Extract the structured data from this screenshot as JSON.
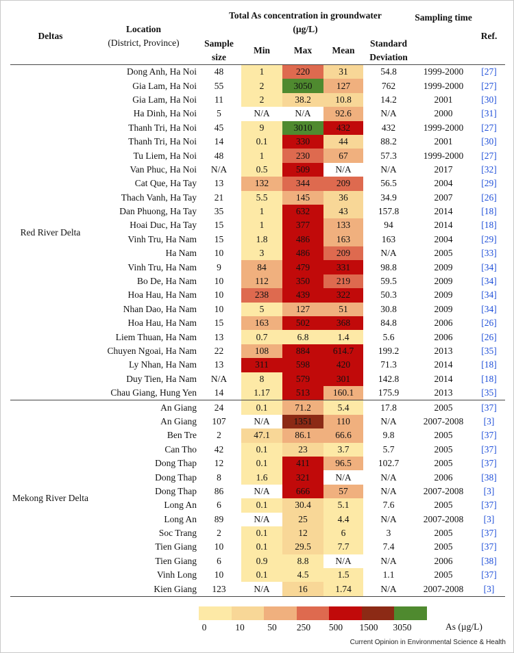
{
  "header": {
    "deltas": "Deltas",
    "location": "Location",
    "location_sub": "(District, Province)",
    "total_as": "Total As concentration in groundwater",
    "total_as_unit": "(µg/L)",
    "sampling_time": "Sampling time",
    "ref": "Ref.",
    "sample_size": "Sample size",
    "min": "Min",
    "max": "Max",
    "mean": "Mean",
    "std": "Standard Deviation"
  },
  "colors": {
    "c0": "#fde9a6",
    "c1": "#f8d797",
    "c2": "#f0b07e",
    "c3": "#de6a4f",
    "c4": "#c10a0a",
    "c5": "#8c2a15",
    "c6": "#4f8a2f",
    "white": "#ffffff",
    "ref_text": "#1f4fd8"
  },
  "groups": [
    {
      "name": "Red River Delta",
      "rows": [
        {
          "location": "Dong Anh, Ha Noi",
          "n": "48",
          "min": "1",
          "max": "220",
          "mean": "31",
          "std": "54.8",
          "time": "1999-2000",
          "ref": "[27]",
          "cmin": "c0",
          "cmax": "c3",
          "cmean": "c1"
        },
        {
          "location": "Gia Lam, Ha Noi",
          "n": "55",
          "min": "2",
          "max": "3050",
          "mean": "127",
          "std": "762",
          "time": "1999-2000",
          "ref": "[27]",
          "cmin": "c0",
          "cmax": "c6",
          "cmean": "c2"
        },
        {
          "location": "Gia Lam, Ha Noi",
          "n": "11",
          "min": "2",
          "max": "38.2",
          "mean": "10.8",
          "std": "14.2",
          "time": "2001",
          "ref": "[30]",
          "cmin": "c0",
          "cmax": "c1",
          "cmean": "c1"
        },
        {
          "location": "Ha Dinh, Ha Noi",
          "n": "5",
          "min": "N/A",
          "max": "N/A",
          "mean": "92.6",
          "std": "N/A",
          "time": "2000",
          "ref": "[31]",
          "cmin": "white",
          "cmax": "white",
          "cmean": "c2"
        },
        {
          "location": "Thanh Tri, Ha Noi",
          "n": "45",
          "min": "9",
          "max": "3010",
          "mean": "432",
          "std": "432",
          "time": "1999-2000",
          "ref": "[27]",
          "cmin": "c0",
          "cmax": "c6",
          "cmean": "c4"
        },
        {
          "location": "Thanh Tri, Ha Noi",
          "n": "14",
          "min": "0.1",
          "max": "330",
          "mean": "44",
          "std": "88.2",
          "time": "2001",
          "ref": "[30]",
          "cmin": "c0",
          "cmax": "c4",
          "cmean": "c1"
        },
        {
          "location": "Tu Liem, Ha Noi",
          "n": "48",
          "min": "1",
          "max": "230",
          "mean": "67",
          "std": "57.3",
          "time": "1999-2000",
          "ref": "[27]",
          "cmin": "c0",
          "cmax": "c3",
          "cmean": "c2"
        },
        {
          "location": "Van Phuc, Ha Noi",
          "n": "N/A",
          "min": "0.5",
          "max": "509",
          "mean": "N/A",
          "std": "N/A",
          "time": "2017",
          "ref": "[32]",
          "cmin": "c0",
          "cmax": "c4",
          "cmean": "white"
        },
        {
          "location": "Cat Que, Ha Tay",
          "n": "13",
          "min": "132",
          "max": "344",
          "mean": "209",
          "std": "56.5",
          "time": "2004",
          "ref": "[29]",
          "cmin": "c2",
          "cmax": "c3",
          "cmean": "c3"
        },
        {
          "location": "Thach Vanh, Ha Tay",
          "n": "21",
          "min": "5.5",
          "max": "145",
          "mean": "36",
          "std": "34.9",
          "time": "2007",
          "ref": "[26]",
          "cmin": "c0",
          "cmax": "c2",
          "cmean": "c1"
        },
        {
          "location": "Dan Phuong, Ha Tay",
          "n": "35",
          "min": "1",
          "max": "632",
          "mean": "43",
          "std": "157.8",
          "time": "2014",
          "ref": "[18]",
          "cmin": "c0",
          "cmax": "c4",
          "cmean": "c1"
        },
        {
          "location": "Hoai Duc, Ha Tay",
          "n": "15",
          "min": "1",
          "max": "377",
          "mean": "133",
          "std": "94",
          "time": "2014",
          "ref": "[18]",
          "cmin": "c0",
          "cmax": "c4",
          "cmean": "c2"
        },
        {
          "location": "Vinh Tru, Ha Nam",
          "n": "15",
          "min": "1.8",
          "max": "486",
          "mean": "163",
          "std": "163",
          "time": "2004",
          "ref": "[29]",
          "cmin": "c0",
          "cmax": "c4",
          "cmean": "c2"
        },
        {
          "location": "Ha Nam",
          "n": "10",
          "min": "3",
          "max": "486",
          "mean": "209",
          "std": "N/A",
          "time": "2005",
          "ref": "[33]",
          "cmin": "c0",
          "cmax": "c4",
          "cmean": "c3"
        },
        {
          "location": "Vinh Tru, Ha Nam",
          "n": "9",
          "min": "84",
          "max": "479",
          "mean": "331",
          "std": "98.8",
          "time": "2009",
          "ref": "[34]",
          "cmin": "c2",
          "cmax": "c4",
          "cmean": "c4"
        },
        {
          "location": "Bo De, Ha Nam",
          "n": "10",
          "min": "112",
          "max": "350",
          "mean": "219",
          "std": "59.5",
          "time": "2009",
          "ref": "[34]",
          "cmin": "c2",
          "cmax": "c4",
          "cmean": "c3"
        },
        {
          "location": "Hoa Hau, Ha Nam",
          "n": "10",
          "min": "238",
          "max": "439",
          "mean": "322",
          "std": "50.3",
          "time": "2009",
          "ref": "[34]",
          "cmin": "c3",
          "cmax": "c4",
          "cmean": "c4"
        },
        {
          "location": "Nhan Dao, Ha Nam",
          "n": "10",
          "min": "5",
          "max": "127",
          "mean": "51",
          "std": "30.8",
          "time": "2009",
          "ref": "[34]",
          "cmin": "c0",
          "cmax": "c2",
          "cmean": "c2"
        },
        {
          "location": "Hoa Hau, Ha Nam",
          "n": "15",
          "min": "163",
          "max": "502",
          "mean": "368",
          "std": "84.8",
          "time": "2006",
          "ref": "[26]",
          "cmin": "c2",
          "cmax": "c4",
          "cmean": "c4"
        },
        {
          "location": "Liem Thuan, Ha Nam",
          "n": "13",
          "min": "0.7",
          "max": "6.8",
          "mean": "1.4",
          "std": "5.6",
          "time": "2006",
          "ref": "[26]",
          "cmin": "c0",
          "cmax": "c0",
          "cmean": "c0"
        },
        {
          "location": "Chuyen Ngoai, Ha Nam",
          "n": "22",
          "min": "108",
          "max": "884",
          "mean": "614.7",
          "std": "199.2",
          "time": "2013",
          "ref": "[35]",
          "cmin": "c2",
          "cmax": "c4",
          "cmean": "c4"
        },
        {
          "location": "Ly Nhan, Ha Nam",
          "n": "13",
          "min": "311",
          "max": "598",
          "mean": "420",
          "std": "71.3",
          "time": "2014",
          "ref": "[18]",
          "cmin": "c4",
          "cmax": "c4",
          "cmean": "c4"
        },
        {
          "location": "Duy Tien, Ha Nam",
          "n": "N/A",
          "min": "8",
          "max": "579",
          "mean": "301",
          "std": "142.8",
          "time": "2014",
          "ref": "[18]",
          "cmin": "c0",
          "cmax": "c4",
          "cmean": "c4"
        },
        {
          "location": "Chau Giang, Hung Yen",
          "n": "14",
          "min": "1.17",
          "max": "513",
          "mean": "160.1",
          "std": "175.9",
          "time": "2013",
          "ref": "[35]",
          "cmin": "c0",
          "cmax": "c4",
          "cmean": "c2"
        }
      ]
    },
    {
      "name": "Mekong River Delta",
      "rows": [
        {
          "location": "An Giang",
          "n": "24",
          "min": "0.1",
          "max": "71.2",
          "mean": "5.4",
          "std": "17.8",
          "time": "2005",
          "ref": "[37]",
          "cmin": "c0",
          "cmax": "c2",
          "cmean": "c0"
        },
        {
          "location": "An Giang",
          "n": "107",
          "min": "N/A",
          "max": "1351",
          "mean": "110",
          "std": "N/A",
          "time": "2007-2008",
          "ref": "[3]",
          "cmin": "white",
          "cmax": "c5",
          "cmean": "c2"
        },
        {
          "location": "Ben Tre",
          "n": "2",
          "min": "47.1",
          "max": "86.1",
          "mean": "66.6",
          "std": "9.8",
          "time": "2005",
          "ref": "[37]",
          "cmin": "c1",
          "cmax": "c2",
          "cmean": "c2"
        },
        {
          "location": "Can Tho",
          "n": "42",
          "min": "0.1",
          "max": "23",
          "mean": "3.7",
          "std": "5.7",
          "time": "2005",
          "ref": "[37]",
          "cmin": "c0",
          "cmax": "c1",
          "cmean": "c0"
        },
        {
          "location": "Dong Thap",
          "n": "12",
          "min": "0.1",
          "max": "411",
          "mean": "96.5",
          "std": "102.7",
          "time": "2005",
          "ref": "[37]",
          "cmin": "c0",
          "cmax": "c4",
          "cmean": "c2"
        },
        {
          "location": "Dong Thap",
          "n": "8",
          "min": "1.6",
          "max": "321",
          "mean": "N/A",
          "std": "N/A",
          "time": "2006",
          "ref": "[38]",
          "cmin": "c0",
          "cmax": "c4",
          "cmean": "white"
        },
        {
          "location": "Dong Thap",
          "n": "86",
          "min": "N/A",
          "max": "666",
          "mean": "57",
          "std": "N/A",
          "time": "2007-2008",
          "ref": "[3]",
          "cmin": "white",
          "cmax": "c4",
          "cmean": "c2"
        },
        {
          "location": "Long An",
          "n": "6",
          "min": "0.1",
          "max": "30.4",
          "mean": "5.1",
          "std": "7.6",
          "time": "2005",
          "ref": "[37]",
          "cmin": "c0",
          "cmax": "c1",
          "cmean": "c0"
        },
        {
          "location": "Long An",
          "n": "89",
          "min": "N/A",
          "max": "25",
          "mean": "4.4",
          "std": "N/A",
          "time": "2007-2008",
          "ref": "[3]",
          "cmin": "white",
          "cmax": "c1",
          "cmean": "c0"
        },
        {
          "location": "Soc Trang",
          "n": "2",
          "min": "0.1",
          "max": "12",
          "mean": "6",
          "std": "3",
          "time": "2005",
          "ref": "[37]",
          "cmin": "c0",
          "cmax": "c1",
          "cmean": "c0"
        },
        {
          "location": "Tien Giang",
          "n": "10",
          "min": "0.1",
          "max": "29.5",
          "mean": "7.7",
          "std": "7.4",
          "time": "2005",
          "ref": "[37]",
          "cmin": "c0",
          "cmax": "c1",
          "cmean": "c0"
        },
        {
          "location": "Tien Giang",
          "n": "6",
          "min": "0.9",
          "max": "8.8",
          "mean": "N/A",
          "std": "N/A",
          "time": "2006",
          "ref": "[38]",
          "cmin": "c0",
          "cmax": "c0",
          "cmean": "white"
        },
        {
          "location": "Vinh Long",
          "n": "10",
          "min": "0.1",
          "max": "4.5",
          "mean": "1.5",
          "std": "1.1",
          "time": "2005",
          "ref": "[37]",
          "cmin": "c0",
          "cmax": "c0",
          "cmean": "c0"
        },
        {
          "location": "Kien Giang",
          "n": "123",
          "min": "N/A",
          "max": "16",
          "mean": "1.74",
          "std": "N/A",
          "time": "2007-2008",
          "ref": "[3]",
          "cmin": "white",
          "cmax": "c1",
          "cmean": "c0"
        }
      ]
    }
  ],
  "legend": {
    "swatches": [
      "c0",
      "c1",
      "c2",
      "c3",
      "c4",
      "c5",
      "c6"
    ],
    "labels": [
      "0",
      "10",
      "50",
      "250",
      "500",
      "1500",
      "3050"
    ],
    "unit": "As (µg/L)"
  },
  "credit": "Current Opinion in Environmental Science & Health"
}
